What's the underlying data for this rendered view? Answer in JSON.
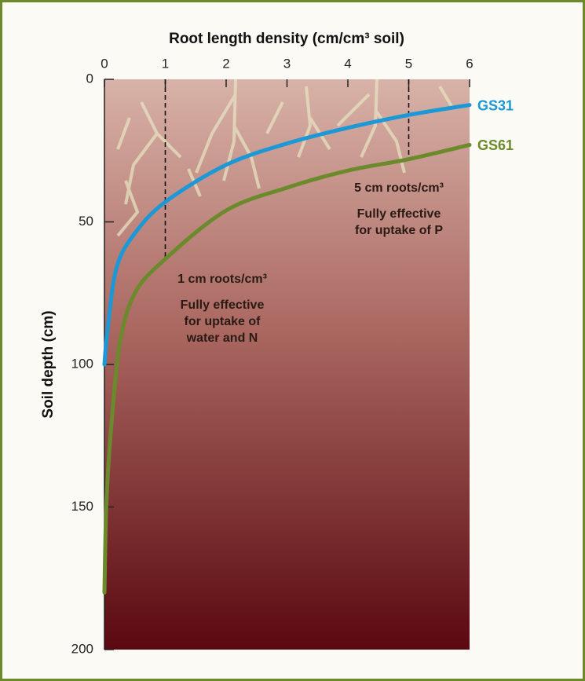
{
  "chart_data": {
    "type": "line",
    "title": "Root length density (cm/cm³ soil)",
    "y_label": "Soil depth (cm)",
    "xlim": [
      0,
      6
    ],
    "xticks": [
      0,
      1,
      2,
      3,
      4,
      5,
      6
    ],
    "ylim": [
      0,
      200
    ],
    "yticks": [
      0,
      50,
      100,
      150,
      200
    ],
    "y_inverted": true,
    "series": [
      {
        "name": "GS31",
        "color": "#1b98d5",
        "x": [
          0,
          0.05,
          0.2,
          0.5,
          1,
          2,
          3,
          4,
          5,
          6
        ],
        "values": [
          100,
          88,
          66,
          54,
          43,
          30,
          22.5,
          17,
          12.5,
          9
        ]
      },
      {
        "name": "GS61",
        "color": "#6a8a2b",
        "x": [
          0,
          0.03,
          0.1,
          0.25,
          0.5,
          1,
          2,
          3,
          4,
          5,
          6
        ],
        "values": [
          180,
          150,
          125,
          93,
          75,
          63,
          46,
          38,
          32,
          28,
          23
        ]
      }
    ],
    "reference_lines": [
      {
        "x": 1,
        "depth": 63
      },
      {
        "x": 5,
        "depth": 28
      }
    ],
    "annotations": [
      {
        "heading": "1 cm roots/cm³",
        "lines": [
          "Fully effective",
          "for uptake of",
          "water and N"
        ]
      },
      {
        "heading": "5 cm roots/cm³",
        "lines": [
          "Fully effective",
          "for uptake of P"
        ]
      }
    ]
  }
}
